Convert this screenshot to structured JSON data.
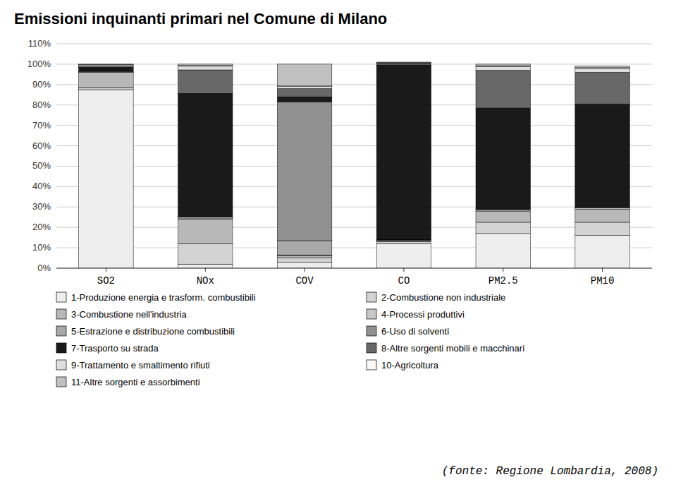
{
  "chart_data": {
    "type": "bar",
    "title": "Emissioni inquinanti primari nel Comune di Milano",
    "annotations": [
      "(fonte: Regione Lombardia, 2008)"
    ],
    "categories": [
      "SO2",
      "NOx",
      "COV",
      "CO",
      "PM2.5",
      "PM10"
    ],
    "stacked": true,
    "grid": true,
    "legend": "bottom",
    "series": [
      {
        "name": "1-Produzione energia e trasform. combustibili",
        "color": "#eeeeee",
        "values": [
          0.875,
          0.02,
          0.03,
          0.12,
          0.17,
          0.16
        ]
      },
      {
        "name": "2-Combustione non industriale",
        "color": "#d3d3d3",
        "values": [
          0.01,
          0.1,
          0.02,
          0.01,
          0.055,
          0.065
        ]
      },
      {
        "name": "3-Combustione nell'industria",
        "color": "#b8b8b8",
        "values": [
          0.075,
          0.12,
          0.01,
          0.005,
          0.055,
          0.065
        ]
      },
      {
        "name": "4-Processi produttivi",
        "color": "#c8c8c8",
        "values": [
          0.002,
          0.002,
          0.005,
          0.002,
          0.005,
          0.005
        ]
      },
      {
        "name": "5-Estrazione e distribuzione combustibili",
        "color": "#a8a8a8",
        "values": [
          0.003,
          0.008,
          0.07,
          0.002,
          0.003,
          0.003
        ]
      },
      {
        "name": "6-Uso di solventi",
        "color": "#909090",
        "values": [
          0.002,
          0.002,
          0.68,
          0.002,
          0.002,
          0.002
        ]
      },
      {
        "name": "7-Trasporto su strada",
        "color": "#1a1a1a",
        "values": [
          0.018,
          0.605,
          0.025,
          0.855,
          0.495,
          0.505
        ]
      },
      {
        "name": "8-Altre sorgenti mobili e macchinari",
        "color": "#686868",
        "values": [
          0.003,
          0.115,
          0.04,
          0.008,
          0.185,
          0.155
        ]
      },
      {
        "name": "9-Trattamento e smaltimento rifiuti",
        "color": "#dedede",
        "values": [
          0.008,
          0.018,
          0.01,
          0.002,
          0.018,
          0.018
        ]
      },
      {
        "name": "10-Agricoltura",
        "color": "#f8f8f8",
        "values": [
          0.002,
          0.003,
          0.003,
          0.002,
          0.005,
          0.005
        ]
      },
      {
        "name": "11-Altre sorgenti e assorbimenti",
        "color": "#c0c0c0",
        "values": [
          0.002,
          0.007,
          0.107,
          0.002,
          0.007,
          0.007
        ]
      }
    ],
    "ylim": [
      0,
      1.1
    ],
    "yticks": [
      {
        "value": 0.0,
        "label": "0%"
      },
      {
        "value": 0.1,
        "label": "10%"
      },
      {
        "value": 0.2,
        "label": "20%"
      },
      {
        "value": 0.3,
        "label": "30%"
      },
      {
        "value": 0.4,
        "label": "40%"
      },
      {
        "value": 0.5,
        "label": "50%"
      },
      {
        "value": 0.6,
        "label": "60%"
      },
      {
        "value": 0.7,
        "label": "70%"
      },
      {
        "value": 0.8,
        "label": "80%"
      },
      {
        "value": 0.9,
        "label": "90%"
      },
      {
        "value": 1.0,
        "label": "100%"
      },
      {
        "value": 1.1,
        "label": "110%"
      }
    ]
  }
}
